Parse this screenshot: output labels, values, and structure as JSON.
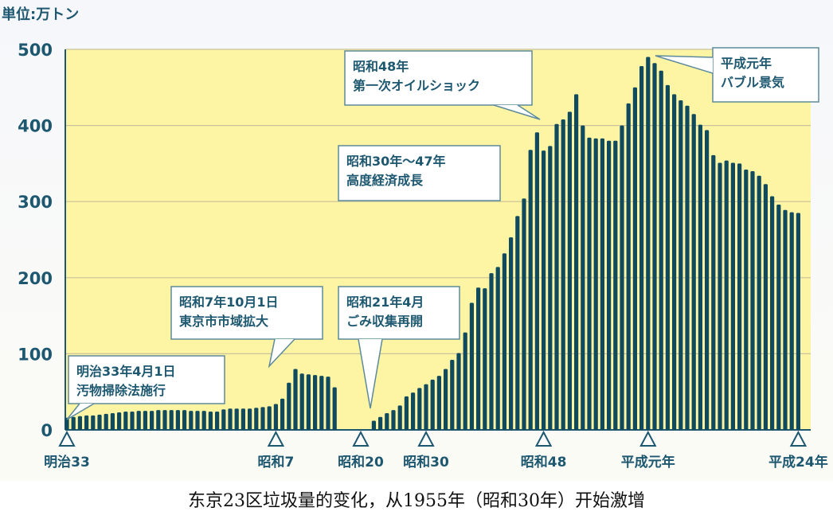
{
  "chart_data": {
    "type": "bar",
    "unit_label": "単位:万トン",
    "ylim": [
      0,
      500
    ],
    "yticks": [
      0,
      100,
      200,
      300,
      400,
      500
    ],
    "grid": true,
    "x_start_year": 1900,
    "x_tick_labels": [
      {
        "year": 1900,
        "label": "明治33"
      },
      {
        "year": 1932,
        "label": "昭和7"
      },
      {
        "year": 1945,
        "label": "昭和20"
      },
      {
        "year": 1955,
        "label": "昭和30"
      },
      {
        "year": 1973,
        "label": "昭和48"
      },
      {
        "year": 1989,
        "label": "平成元年"
      },
      {
        "year": 2012,
        "label": "平成24年"
      }
    ],
    "values": [
      16,
      17,
      18,
      19,
      19,
      20,
      21,
      22,
      23,
      24,
      24,
      25,
      25,
      25,
      26,
      26,
      26,
      26,
      26,
      25,
      25,
      25,
      24,
      24,
      27,
      28,
      28,
      28,
      28,
      29,
      30,
      31,
      34,
      41,
      62,
      80,
      74,
      73,
      72,
      71,
      70,
      56,
      0,
      0,
      0,
      0,
      0,
      12,
      17,
      22,
      26,
      32,
      44,
      49,
      55,
      60,
      66,
      71,
      80,
      92,
      101,
      128,
      167,
      187,
      186,
      206,
      214,
      232,
      253,
      281,
      304,
      368,
      391,
      367,
      373,
      402,
      408,
      418,
      441,
      400,
      384,
      383,
      383,
      380,
      380,
      400,
      429,
      450,
      478,
      490,
      482,
      472,
      453,
      441,
      433,
      426,
      415,
      401,
      394,
      361,
      351,
      354,
      351,
      350,
      342,
      340,
      334,
      323,
      307,
      296,
      289,
      286,
      285
    ],
    "annotations": [
      {
        "lines": [
          "明治33年4月1日",
          "汚物掃除法施行"
        ]
      },
      {
        "lines": [
          "昭和7年10月1日",
          "東京市市域拡大"
        ]
      },
      {
        "lines": [
          "昭和21年4月",
          "ごみ収集再開"
        ]
      },
      {
        "lines": [
          "昭和30年～47年",
          "高度経済成長"
        ]
      },
      {
        "lines": [
          "昭和48年",
          "第一次オイルショック"
        ]
      },
      {
        "lines": [
          "平成元年",
          "バブル景気"
        ]
      }
    ],
    "colors": {
      "bar": "#0f4a5f",
      "plot_bg": "#fdf4a4",
      "text": "#1d5870"
    }
  },
  "caption": "东京23区垃圾量的变化，从1955年（昭和30年）开始激增"
}
